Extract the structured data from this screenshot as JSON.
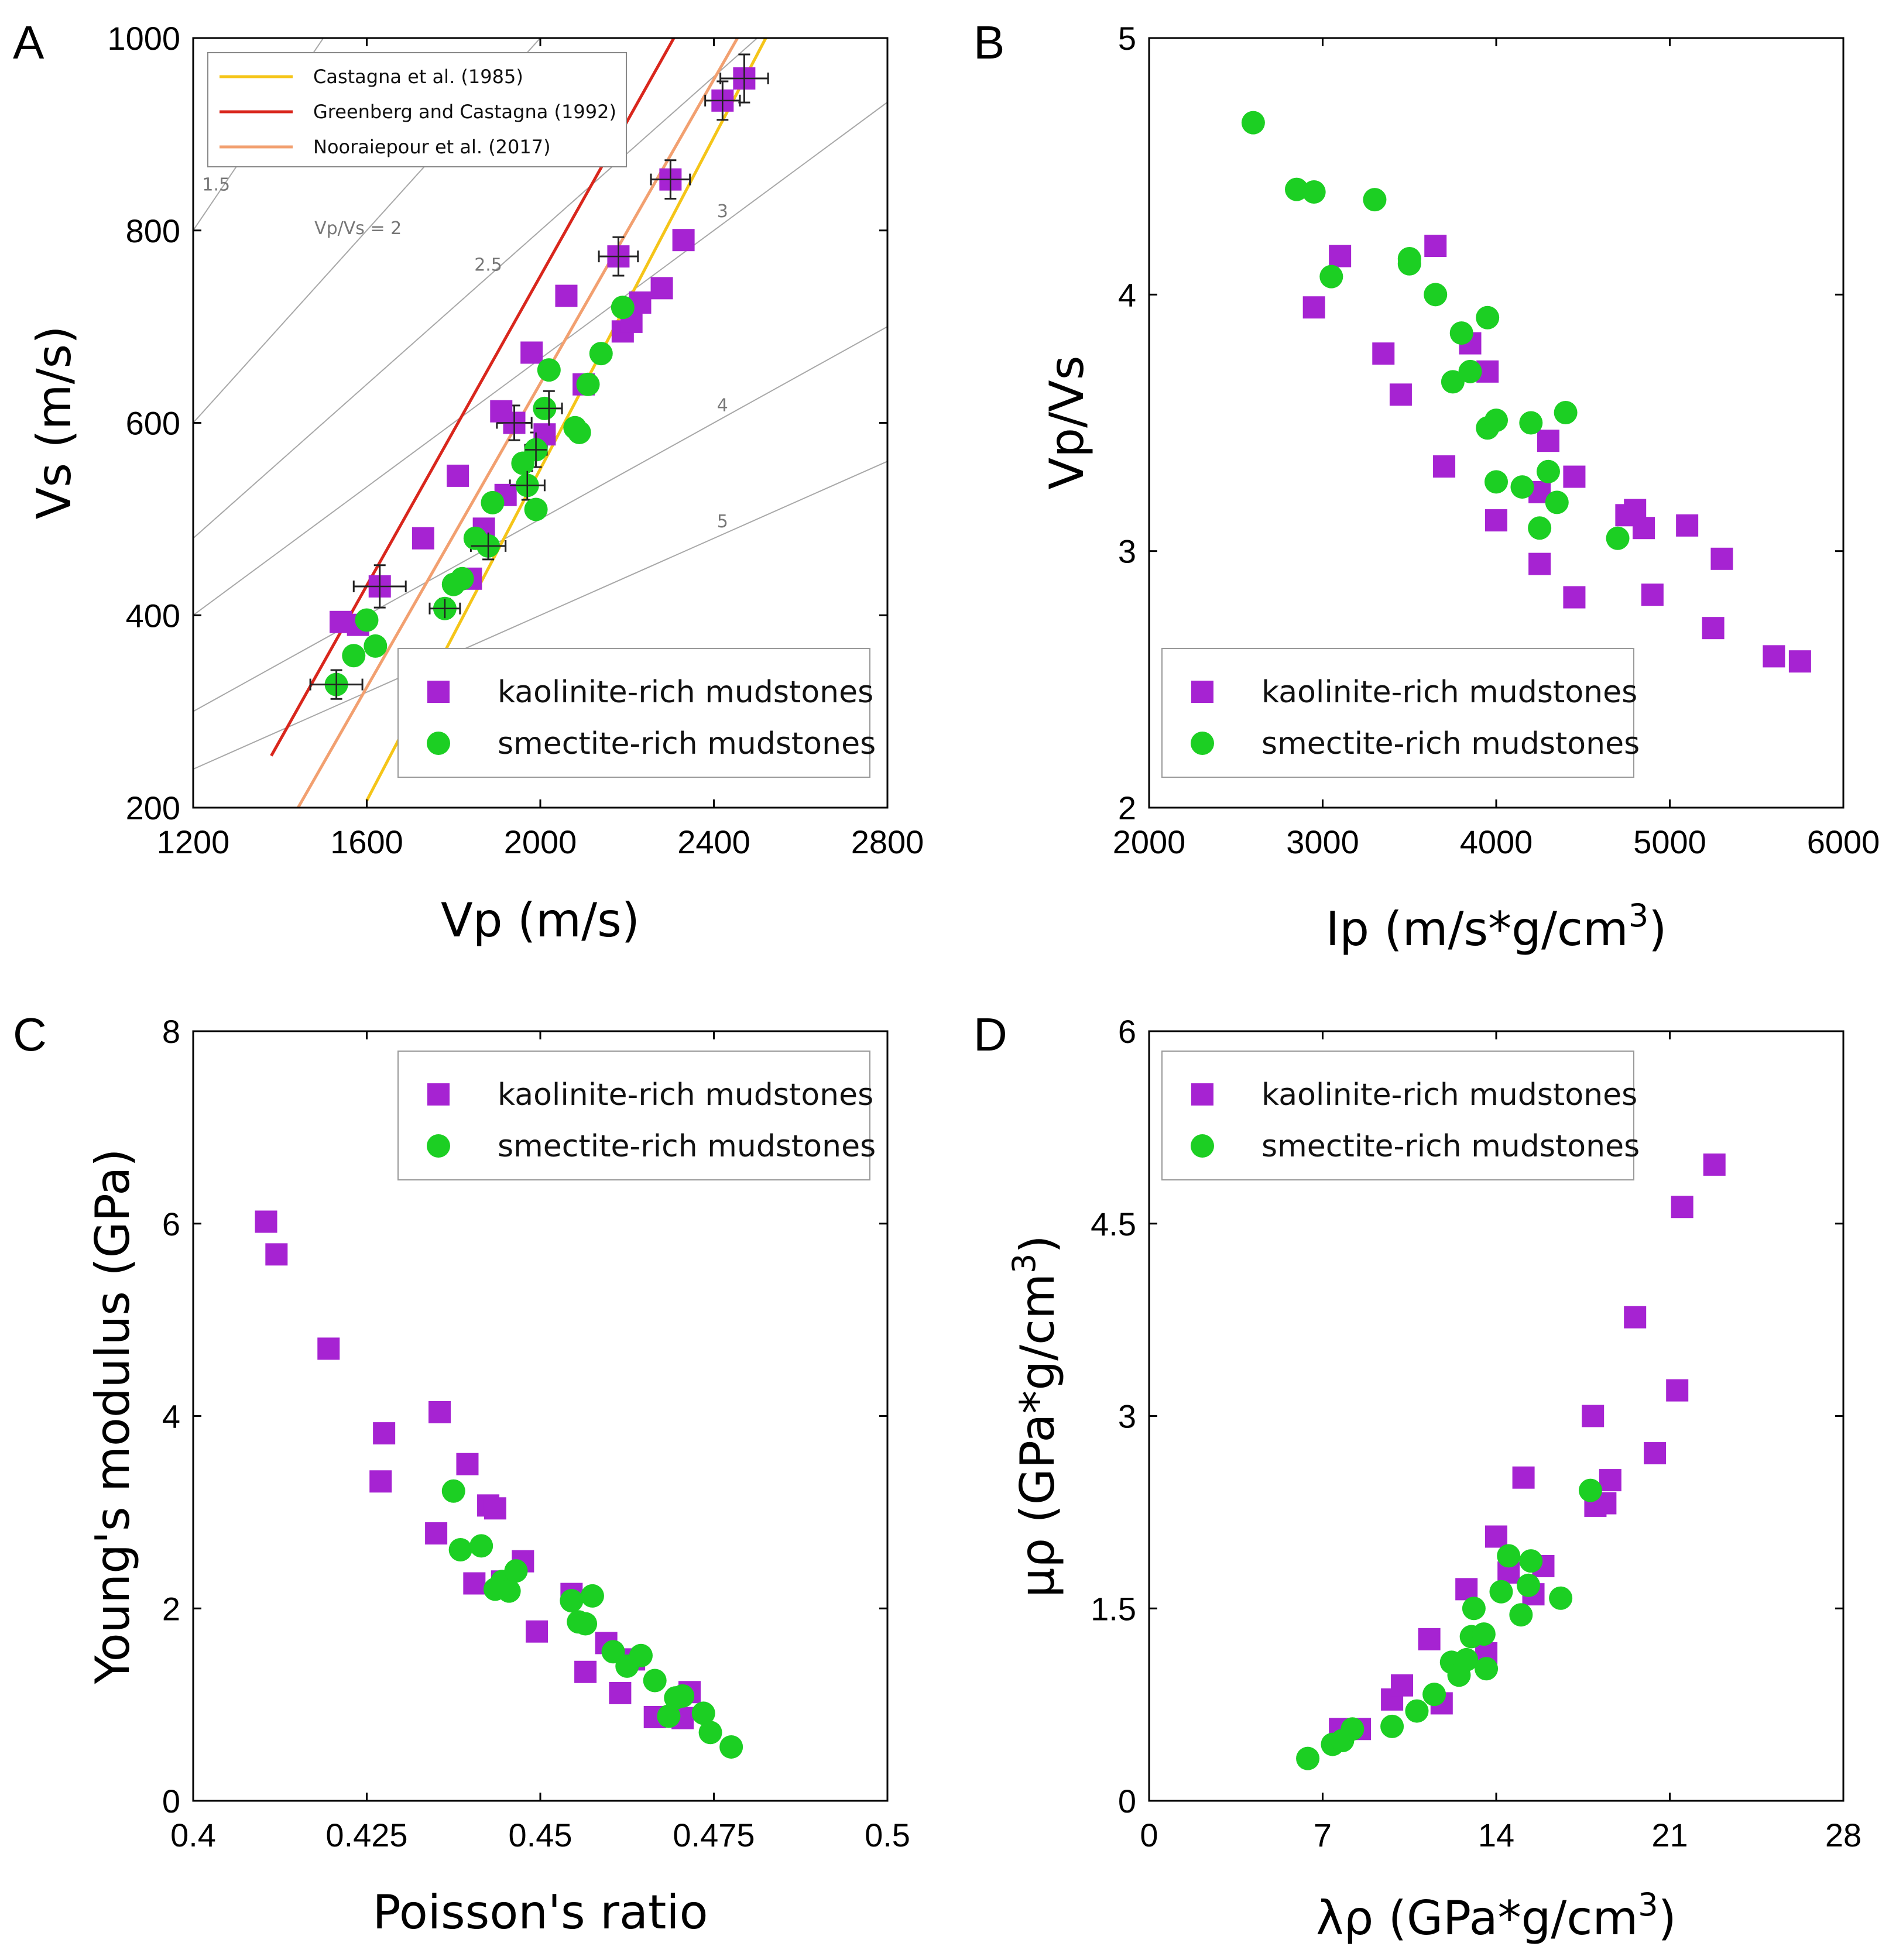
{
  "figure": {
    "series_names": [
      "kaolinite-rich mudstones",
      "smectite-rich mudstones"
    ],
    "colors": {
      "kaolinite": "#a623d2",
      "smectite": "#1ccf23",
      "castagna": "#f5c518",
      "greenberg": "#d9261c",
      "nooraiepour": "#f2a070",
      "iso": "#a8a8a8",
      "errorbar": "#222222"
    }
  },
  "chart_data": [
    {
      "panel": "A",
      "type": "scatter",
      "xlabel": "Vp (m/s)",
      "ylabel": "Vs (m/s)",
      "xlim": [
        1200,
        2800
      ],
      "ylim": [
        200,
        1000
      ],
      "xticks": [
        "1200",
        "1600",
        "2000",
        "2400",
        "2800"
      ],
      "yticks": [
        "200",
        "400",
        "600",
        "800",
        "1000"
      ],
      "legend_position": "bottom-right",
      "line_legend_position": "top-left",
      "trend_lines": [
        {
          "name": "Castagna et al. (1985)",
          "slope": 0.862,
          "intercept": -1172,
          "vp_range": [
            1600,
            2600
          ]
        },
        {
          "name": "Greenberg and Castagna (1992)",
          "slope": 0.8042,
          "intercept": -855.9,
          "vp_range": [
            1380,
            2600
          ]
        },
        {
          "name": "Nooraiepour et al. (2017)",
          "slope": 0.79,
          "intercept": -939,
          "vp_range": [
            1420,
            2600
          ]
        }
      ],
      "vpvs_isolines": [
        {
          "ratio": 1.5,
          "label": "1.5"
        },
        {
          "ratio": 2,
          "label": "Vp/Vs = 2"
        },
        {
          "ratio": 2.5,
          "label": "2.5"
        },
        {
          "ratio": 3,
          "label": "3"
        },
        {
          "ratio": 4,
          "label": "4"
        },
        {
          "ratio": 5,
          "label": "5"
        }
      ],
      "series": [
        {
          "name": "kaolinite-rich mudstones",
          "x": [
            1540,
            1580,
            1630,
            1730,
            1810,
            1840,
            1870,
            1910,
            1940,
            2010,
            1920,
            2060,
            1980,
            2100,
            2190,
            2210,
            2230,
            2280,
            2330,
            2300,
            2180,
            2420,
            2470
          ],
          "y": [
            393,
            390,
            430,
            480,
            545,
            438,
            490,
            612,
            600,
            588,
            525,
            732,
            673,
            640,
            695,
            705,
            725,
            740,
            790,
            853,
            773,
            935,
            958
          ]
        },
        {
          "name": "smectite-rich mudstones",
          "x": [
            1530,
            1570,
            1600,
            1620,
            1780,
            1800,
            1820,
            1850,
            1880,
            1890,
            1960,
            1970,
            1990,
            1990,
            2010,
            2020,
            2080,
            2090,
            2110,
            2140,
            2190
          ],
          "y": [
            328,
            358,
            395,
            368,
            407,
            432,
            438,
            480,
            472,
            517,
            558,
            535,
            572,
            510,
            615,
            655,
            595,
            590,
            640,
            672,
            720
          ]
        }
      ],
      "error_bars": [
        {
          "x": 1530,
          "y": 328,
          "xerr": 60,
          "yerr": 15
        },
        {
          "x": 1630,
          "y": 430,
          "xerr": 60,
          "yerr": 22
        },
        {
          "x": 1780,
          "y": 407,
          "xerr": 35,
          "yerr": 10
        },
        {
          "x": 1880,
          "y": 472,
          "xerr": 40,
          "yerr": 14
        },
        {
          "x": 1940,
          "y": 600,
          "xerr": 40,
          "yerr": 18
        },
        {
          "x": 1970,
          "y": 535,
          "xerr": 40,
          "yerr": 15
        },
        {
          "x": 1990,
          "y": 572,
          "xerr": 25,
          "yerr": 18
        },
        {
          "x": 2020,
          "y": 615,
          "xerr": 30,
          "yerr": 18
        },
        {
          "x": 2180,
          "y": 773,
          "xerr": 45,
          "yerr": 20
        },
        {
          "x": 2300,
          "y": 853,
          "xerr": 45,
          "yerr": 20
        },
        {
          "x": 2420,
          "y": 935,
          "xerr": 40,
          "yerr": 20
        },
        {
          "x": 2470,
          "y": 958,
          "xerr": 55,
          "yerr": 25
        }
      ]
    },
    {
      "panel": "B",
      "type": "scatter",
      "xlabel": "Ip (m/s*g/cm",
      "xlabel_sup": "3",
      "xlabel_end": ")",
      "ylabel": "Vp/Vs",
      "xlim": [
        2000,
        6000
      ],
      "ylim": [
        2,
        5
      ],
      "xticks": [
        "2000",
        "3000",
        "4000",
        "5000",
        "6000"
      ],
      "yticks": [
        "2",
        "3",
        "4",
        "5"
      ],
      "legend_position": "bottom-left",
      "series": [
        {
          "name": "kaolinite-rich mudstones",
          "x": [
            2950,
            3100,
            3350,
            3450,
            3650,
            3700,
            3850,
            3950,
            4000,
            4250,
            4250,
            4300,
            4450,
            4450,
            4750,
            4800,
            4850,
            4900,
            5100,
            5250,
            5300,
            5600,
            5750
          ],
          "y": [
            3.95,
            4.15,
            3.77,
            3.61,
            4.19,
            3.33,
            3.81,
            3.7,
            3.12,
            3.23,
            2.95,
            3.43,
            3.29,
            2.82,
            3.14,
            3.16,
            3.09,
            2.83,
            3.1,
            2.7,
            2.97,
            2.59,
            2.57
          ]
        },
        {
          "name": "smectite-rich mudstones",
          "x": [
            2600,
            2850,
            2950,
            3050,
            3300,
            3500,
            3500,
            3650,
            3750,
            3800,
            3850,
            3950,
            3950,
            4000,
            4000,
            4150,
            4200,
            4250,
            4300,
            4350,
            4400,
            4700
          ],
          "y": [
            4.67,
            4.41,
            4.4,
            4.07,
            4.37,
            4.14,
            4.12,
            4.0,
            3.66,
            3.85,
            3.7,
            3.48,
            3.91,
            3.51,
            3.27,
            3.25,
            3.5,
            3.09,
            3.31,
            3.19,
            3.54,
            3.05
          ]
        }
      ]
    },
    {
      "panel": "C",
      "type": "scatter",
      "xlabel": "Poisson's ratio",
      "ylabel": "Young's modulus (GPa)",
      "xlim": [
        0.4,
        0.5
      ],
      "ylim": [
        0,
        8
      ],
      "xticks": [
        "0.4",
        "0.425",
        "0.45",
        "0.475",
        "0.5"
      ],
      "yticks": [
        "0",
        "2",
        "4",
        "6",
        "8"
      ],
      "legend_position": "top-right",
      "series": [
        {
          "name": "kaolinite-rich mudstones",
          "x": [
            0.4105,
            0.412,
            0.4195,
            0.4275,
            0.427,
            0.435,
            0.4355,
            0.4395,
            0.4405,
            0.4425,
            0.4435,
            0.4445,
            0.4475,
            0.4495,
            0.4545,
            0.4565,
            0.4595,
            0.4615,
            0.4635,
            0.4665,
            0.4705,
            0.4715
          ],
          "y": [
            6.02,
            5.68,
            4.7,
            3.82,
            3.32,
            2.78,
            4.04,
            3.5,
            2.26,
            3.07,
            3.04,
            2.28,
            2.49,
            1.76,
            2.15,
            1.34,
            1.64,
            1.12,
            1.47,
            0.87,
            0.86,
            1.13
          ]
        },
        {
          "name": "smectite-rich mudstones",
          "x": [
            0.4375,
            0.4385,
            0.4415,
            0.4435,
            0.4445,
            0.4455,
            0.4465,
            0.4545,
            0.4555,
            0.4565,
            0.4575,
            0.4605,
            0.4625,
            0.4645,
            0.4665,
            0.4685,
            0.4695,
            0.4705,
            0.4735,
            0.4745,
            0.4775
          ],
          "y": [
            3.22,
            2.61,
            2.65,
            2.2,
            2.28,
            2.18,
            2.39,
            2.08,
            1.86,
            1.84,
            2.13,
            1.55,
            1.4,
            1.51,
            1.25,
            0.88,
            1.07,
            1.09,
            0.91,
            0.71,
            0.56
          ]
        }
      ]
    },
    {
      "panel": "D",
      "type": "scatter",
      "xlabel": "λρ (GPa*g/cm",
      "xlabel_sup": "3",
      "xlabel_end": ")",
      "ylabel": "μρ (GPa*g/cm",
      "ylabel_sup": "3",
      "ylabel_end": ")",
      "xlim": [
        0,
        28
      ],
      "ylim": [
        0,
        6
      ],
      "xticks": [
        "0",
        "7",
        "14",
        "21",
        "28"
      ],
      "yticks": [
        "0",
        "1.5",
        "3",
        "4.5",
        "6"
      ],
      "legend_position": "top-left",
      "series": [
        {
          "name": "kaolinite-rich mudstones",
          "x": [
            7.7,
            8.5,
            9.8,
            10.2,
            11.3,
            11.8,
            12.8,
            13.6,
            14.0,
            14.5,
            15.1,
            15.5,
            15.9,
            17.9,
            18.0,
            18.4,
            18.6,
            19.6,
            20.4,
            21.3,
            21.5,
            22.8
          ],
          "y": [
            0.56,
            0.56,
            0.79,
            0.9,
            1.26,
            0.76,
            1.65,
            1.15,
            2.06,
            1.78,
            2.52,
            1.61,
            1.83,
            3.0,
            2.3,
            2.32,
            2.5,
            3.77,
            2.71,
            3.2,
            4.63,
            4.96
          ]
        },
        {
          "name": "smectite-rich mudstones",
          "x": [
            6.4,
            7.4,
            7.8,
            8.2,
            9.8,
            10.8,
            11.5,
            12.2,
            12.5,
            12.8,
            13.0,
            13.1,
            13.5,
            13.6,
            14.2,
            14.5,
            15.0,
            15.3,
            15.4,
            16.6,
            17.8
          ],
          "y": [
            0.33,
            0.44,
            0.47,
            0.56,
            0.58,
            0.7,
            0.83,
            1.08,
            0.98,
            1.1,
            1.28,
            1.5,
            1.3,
            1.03,
            1.63,
            1.91,
            1.45,
            1.68,
            1.87,
            1.58,
            2.42
          ]
        }
      ]
    }
  ]
}
